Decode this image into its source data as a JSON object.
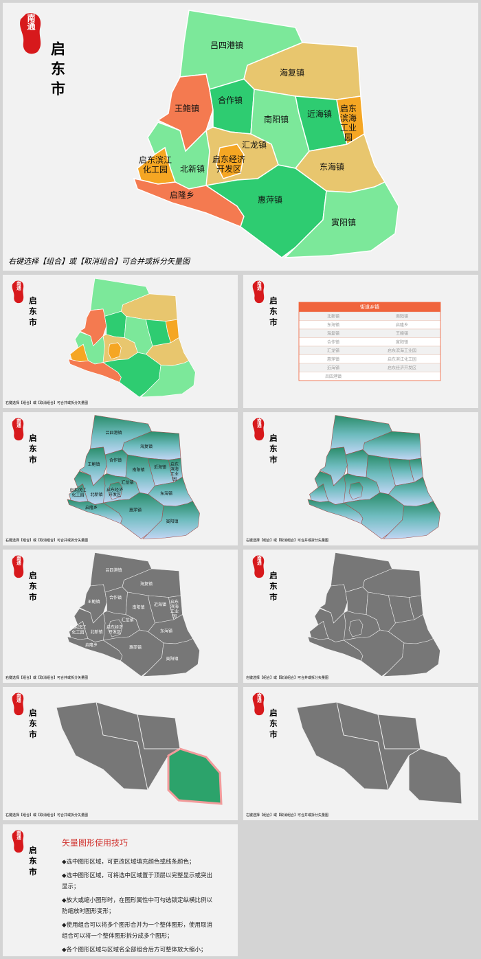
{
  "logo": {
    "seal": "南通",
    "name": "启东市"
  },
  "caption": "右键选择【组合】或【取消组合】可合并或拆分矢量图",
  "regions": [
    "吕四港镇",
    "海复镇",
    "王鲍镇",
    "合作镇",
    "南阳镇",
    "近海镇",
    "启东滨海工业园",
    "东海镇",
    "汇龙镇",
    "启东经济开发区",
    "北新镇",
    "启东滨江化工园",
    "启隆乡",
    "惠萍镇",
    "寅阳镇"
  ],
  "table": {
    "header": "街道乡镇",
    "rows": [
      [
        "北新镇",
        "南阳镇"
      ],
      [
        "东海镇",
        "启隆乡"
      ],
      [
        "海复镇",
        "王鲍镇"
      ],
      [
        "合作镇",
        "寅阳镇"
      ],
      [
        "汇龙镇",
        "启东滨海工业园"
      ],
      [
        "惠萍镇",
        "启东滨江化工园"
      ],
      [
        "近海镇",
        "启东经济开发区"
      ],
      [
        "吕四港镇"
      ]
    ]
  },
  "tips": {
    "title": "矢量图形使用技巧",
    "items": [
      "◆选中图形区域，可更改区域填充颜色或线条颜色；",
      "◆选中图形区域，可将选中区域置于顶层以完整显示或突出显示；",
      "◆放大或缩小图形时，在图形属性中可勾选锁定纵横比例以防缩放时图形变形；",
      "◆使用组合可以将多个图形合并为一个整体图形，使用取消组合可以将一个整体图形拆分成多个图形；",
      "◆各个图形区域与区域名全部组合后方可整体放大缩小；"
    ]
  }
}
